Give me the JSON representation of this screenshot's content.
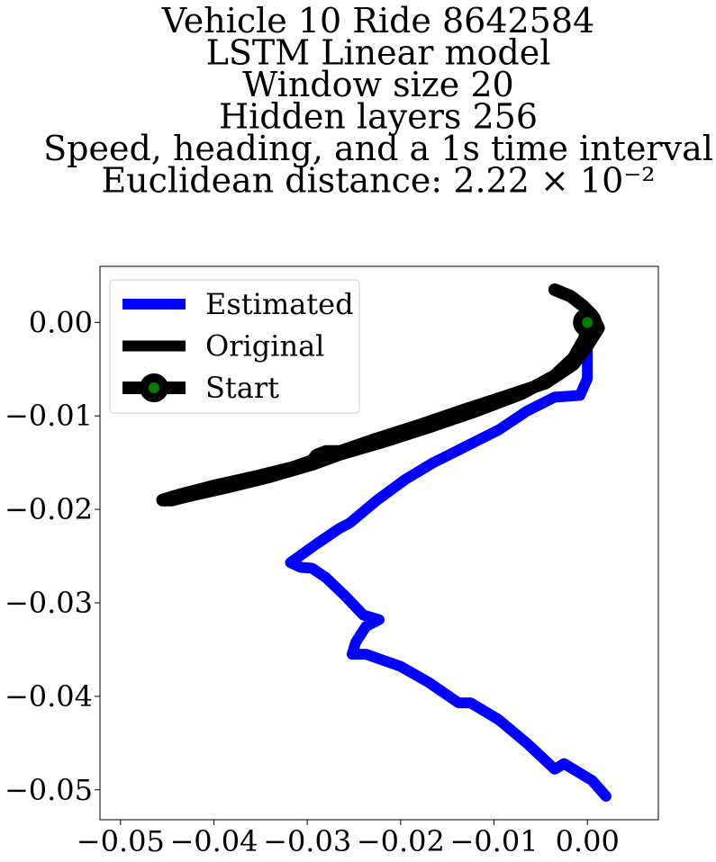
{
  "chart_data": {
    "type": "line",
    "title_lines": [
      "Vehicle 10 Ride 8642584",
      "LSTM Linear model",
      "Window size 20",
      "Hidden layers 256",
      "Speed, heading, and a 1s time interval",
      "Euclidean distance: 2.22 × 10⁻²"
    ],
    "xlabel": "",
    "ylabel": "",
    "xlim": [
      -0.0522,
      0.0076
    ],
    "ylim": [
      -0.0532,
      0.006
    ],
    "x_ticks": [
      -0.05,
      -0.04,
      -0.03,
      -0.02,
      -0.01,
      0.0
    ],
    "x_tick_labels": [
      "−0.05",
      "−0.04",
      "−0.03",
      "−0.02",
      "−0.01",
      "0.00"
    ],
    "y_ticks": [
      0.0,
      -0.01,
      -0.02,
      -0.03,
      -0.04,
      -0.05
    ],
    "y_tick_labels": [
      "0.00",
      "−0.01",
      "−0.02",
      "−0.03",
      "−0.04",
      "−0.05"
    ],
    "grid": false,
    "legend_position": "upper-left",
    "series": [
      {
        "name": "Estimated",
        "color": "#0000ff",
        "points": [
          [
            0.0,
            0.0
          ],
          [
            0.0,
            -0.006
          ],
          [
            -0.0008,
            -0.0078
          ],
          [
            -0.0035,
            -0.008
          ],
          [
            -0.0065,
            -0.0095
          ],
          [
            -0.0095,
            -0.0115
          ],
          [
            -0.0125,
            -0.013
          ],
          [
            -0.0145,
            -0.014
          ],
          [
            -0.0165,
            -0.015
          ],
          [
            -0.0195,
            -0.0168
          ],
          [
            -0.0225,
            -0.019
          ],
          [
            -0.0255,
            -0.0215
          ],
          [
            -0.0265,
            -0.022
          ],
          [
            -0.029,
            -0.0237
          ],
          [
            -0.0318,
            -0.0257
          ],
          [
            -0.0307,
            -0.0262
          ],
          [
            -0.0295,
            -0.0263
          ],
          [
            -0.028,
            -0.0273
          ],
          [
            -0.026,
            -0.0292
          ],
          [
            -0.024,
            -0.0313
          ],
          [
            -0.0223,
            -0.0318
          ],
          [
            -0.0237,
            -0.0325
          ],
          [
            -0.0248,
            -0.0342
          ],
          [
            -0.0252,
            -0.0355
          ],
          [
            -0.0237,
            -0.0355
          ],
          [
            -0.02,
            -0.0368
          ],
          [
            -0.017,
            -0.0385
          ],
          [
            -0.0138,
            -0.0407
          ],
          [
            -0.0125,
            -0.0407
          ],
          [
            -0.0095,
            -0.0425
          ],
          [
            -0.0065,
            -0.045
          ],
          [
            -0.0035,
            -0.0478
          ],
          [
            -0.0025,
            -0.0472
          ],
          [
            0.0005,
            -0.049
          ],
          [
            0.002,
            -0.0507
          ]
        ]
      },
      {
        "name": "Original",
        "color": "#000000",
        "points": [
          [
            -0.0035,
            0.0035
          ],
          [
            -0.0018,
            0.0028
          ],
          [
            -0.0005,
            0.0018
          ],
          [
            0.0005,
            0.0008
          ],
          [
            0.0012,
            -0.0006
          ],
          [
            0.0,
            -0.0025
          ],
          [
            -0.0015,
            -0.0045
          ],
          [
            -0.0045,
            -0.0065
          ],
          [
            -0.009,
            -0.008
          ],
          [
            -0.013,
            -0.0093
          ],
          [
            -0.018,
            -0.011
          ],
          [
            -0.023,
            -0.0126
          ],
          [
            -0.0265,
            -0.0138
          ],
          [
            -0.028,
            -0.0138
          ],
          [
            -0.029,
            -0.0142
          ],
          [
            -0.0295,
            -0.0148
          ],
          [
            -0.0315,
            -0.0155
          ],
          [
            -0.0355,
            -0.0165
          ],
          [
            -0.04,
            -0.0175
          ],
          [
            -0.0435,
            -0.0184
          ],
          [
            -0.0455,
            -0.019
          ],
          [
            -0.0445,
            -0.019
          ],
          [
            -0.0425,
            -0.0185
          ],
          [
            -0.0385,
            -0.0176
          ],
          [
            -0.034,
            -0.0165
          ],
          [
            -0.0295,
            -0.0152
          ],
          [
            -0.0265,
            -0.0141
          ],
          [
            -0.022,
            -0.0128
          ],
          [
            -0.017,
            -0.0112
          ],
          [
            -0.012,
            -0.0095
          ],
          [
            -0.007,
            -0.0076
          ],
          [
            -0.0035,
            -0.0057
          ],
          [
            -0.0015,
            -0.0038
          ],
          [
            -0.0003,
            -0.0017
          ],
          [
            0.0,
            0.0
          ]
        ]
      },
      {
        "name": "Start",
        "color": "#000000",
        "marker_face": "#008000",
        "points": [
          [
            0.0,
            0.0
          ]
        ]
      }
    ]
  }
}
